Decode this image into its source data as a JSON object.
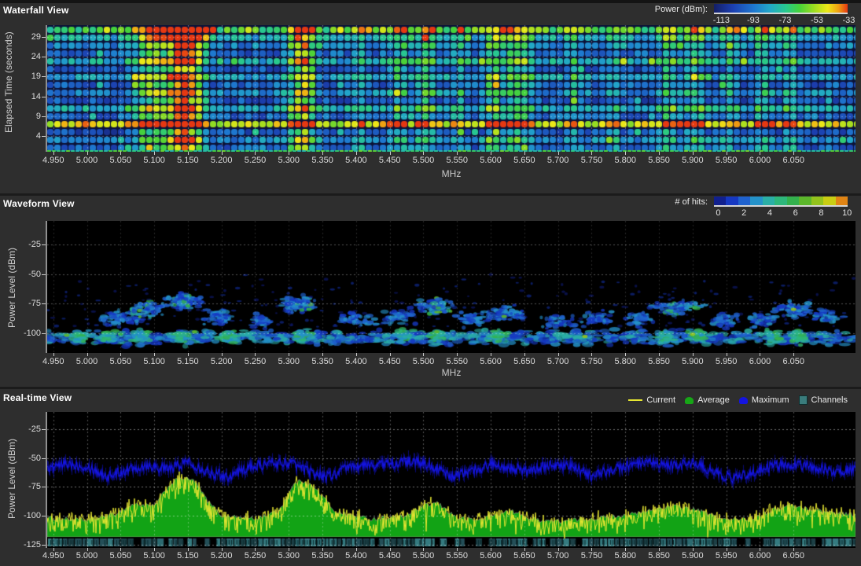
{
  "chart_data": [
    {
      "type": "heatmap",
      "title": "Waterfall View",
      "xlabel": "MHz",
      "ylabel": "Elapsed Time (seconds)",
      "xlim": [
        4.941,
        6.142
      ],
      "ylim": [
        0,
        32
      ],
      "x_ticks": [
        "4.950",
        "5.000",
        "5.050",
        "5.100",
        "5.150",
        "5.200",
        "5.250",
        "5.300",
        "5.350",
        "5.400",
        "5.450",
        "5.500",
        "5.550",
        "5.600",
        "5.650",
        "5.700",
        "5.750",
        "5.800",
        "5.850",
        "5.900",
        "5.950",
        "6.000",
        "6.050"
      ],
      "y_ticks": [
        4,
        9,
        14,
        19,
        24,
        29
      ],
      "grid": true,
      "colorbar": {
        "label": "Power (dBm):",
        "min": -113,
        "max": -33,
        "ticks": [
          -113,
          -93,
          -73,
          -53,
          -33
        ],
        "gradient_stops": [
          [
            0,
            "#141f66"
          ],
          [
            0.14,
            "#1c3fb0"
          ],
          [
            0.3,
            "#1e78d0"
          ],
          [
            0.42,
            "#22a8c8"
          ],
          [
            0.54,
            "#28c88e"
          ],
          [
            0.64,
            "#46d23a"
          ],
          [
            0.75,
            "#9ede20"
          ],
          [
            0.85,
            "#eee818"
          ],
          [
            0.93,
            "#f0a212"
          ],
          [
            1,
            "#e63812"
          ]
        ]
      },
      "rows": {
        "times_s": [
          1,
          3,
          5,
          7,
          9,
          11,
          13,
          15,
          17,
          19,
          21,
          23,
          25,
          27,
          29,
          31
        ],
        "base_levels_0to10": [
          2.5,
          3.5,
          2.0,
          8.5,
          2.5,
          4.5,
          2.0,
          3.5,
          2.5,
          4.0,
          2.0,
          4.5,
          2.5,
          3.5,
          4.5,
          6.5
        ]
      },
      "hot_columns": [
        [
          5.085,
          3.5,
          0.012
        ],
        [
          5.105,
          3.0,
          0.01
        ],
        [
          5.13,
          4.0,
          0.012
        ],
        [
          5.148,
          5.5,
          0.014
        ],
        [
          5.165,
          3.0,
          0.01
        ],
        [
          5.315,
          4.5,
          0.012
        ],
        [
          5.33,
          3.0,
          0.008
        ],
        [
          5.405,
          2.0,
          0.008
        ],
        [
          5.465,
          2.5,
          0.01
        ],
        [
          5.505,
          3.0,
          0.01
        ],
        [
          5.555,
          2.0,
          0.008
        ],
        [
          5.605,
          3.5,
          0.01
        ],
        [
          5.635,
          3.0,
          0.01
        ],
        [
          5.655,
          2.5,
          0.008
        ],
        [
          5.725,
          2.0,
          0.008
        ],
        [
          5.785,
          2.0,
          0.008
        ],
        [
          5.865,
          3.0,
          0.01
        ],
        [
          5.905,
          3.0,
          0.01
        ],
        [
          5.955,
          2.0,
          0.008
        ],
        [
          6.005,
          2.5,
          0.008
        ],
        [
          6.045,
          2.5,
          0.008
        ]
      ],
      "features": [
        "continuous high-power (yellow/orange) row at t=7 s across all frequencies",
        "strongest red hotspot near 5.15 MHz at t=29-31 s",
        "bright teal/green newest row at top (t=31 s)"
      ]
    },
    {
      "type": "heatmap",
      "title": "Waveform View",
      "xlabel": "MHz",
      "ylabel": "Power Level (dBm)",
      "xlim": [
        4.941,
        6.142
      ],
      "ylim": [
        -117,
        -5
      ],
      "x_ticks": [
        "4.950",
        "5.000",
        "5.050",
        "5.100",
        "5.150",
        "5.200",
        "5.250",
        "5.300",
        "5.350",
        "5.400",
        "5.450",
        "5.500",
        "5.550",
        "5.600",
        "5.650",
        "5.700",
        "5.750",
        "5.800",
        "5.850",
        "5.900",
        "5.950",
        "6.000",
        "6.050"
      ],
      "y_ticks": [
        -25,
        -50,
        -75,
        -100
      ],
      "grid": true,
      "colorbar": {
        "label": "# of hits:",
        "ticks": [
          0,
          2,
          4,
          6,
          8,
          10
        ],
        "palette": [
          "#11208e",
          "#1638c2",
          "#1f62cf",
          "#2492c9",
          "#2aafa6",
          "#2db77b",
          "#33b14d",
          "#5cb72b",
          "#93c31c",
          "#c9cd12",
          "#e08414"
        ]
      },
      "noise_floor_dbm": -104,
      "clusters": [
        [
          5.05,
          0.03,
          -88,
          0.5
        ],
        [
          5.09,
          0.025,
          -80,
          0.6
        ],
        [
          5.145,
          0.022,
          -73,
          0.9
        ],
        [
          5.2,
          0.025,
          -86,
          0.4
        ],
        [
          5.26,
          0.02,
          -90,
          0.3
        ],
        [
          5.315,
          0.022,
          -76,
          0.8
        ],
        [
          5.4,
          0.025,
          -88,
          0.4
        ],
        [
          5.46,
          0.02,
          -86,
          0.4
        ],
        [
          5.52,
          0.022,
          -78,
          0.6
        ],
        [
          5.57,
          0.02,
          -88,
          0.3
        ],
        [
          5.62,
          0.03,
          -84,
          0.5
        ],
        [
          5.7,
          0.025,
          -90,
          0.3
        ],
        [
          5.76,
          0.02,
          -88,
          0.3
        ],
        [
          5.82,
          0.02,
          -88,
          0.3
        ],
        [
          5.875,
          0.03,
          -78,
          0.6
        ],
        [
          5.95,
          0.02,
          -90,
          0.3
        ],
        [
          6.0,
          0.02,
          -88,
          0.3
        ],
        [
          6.05,
          0.03,
          -80,
          0.5
        ],
        [
          6.1,
          0.02,
          -86,
          0.3
        ]
      ],
      "hotspots": [
        [
          5.15,
          -77
        ],
        [
          5.05,
          -101
        ],
        [
          5.33,
          -80
        ],
        [
          5.52,
          -99
        ],
        [
          5.62,
          -86
        ],
        [
          5.9,
          -101
        ],
        [
          6.05,
          -80
        ],
        [
          5.16,
          -99
        ],
        [
          4.97,
          -102
        ],
        [
          5.74,
          -103
        ]
      ],
      "band_bright_mhz": [
        4.99,
        5.03,
        5.08,
        5.14,
        5.21,
        5.32,
        5.47,
        5.52,
        5.61,
        5.86,
        5.91,
        6.02,
        6.06
      ]
    },
    {
      "type": "line",
      "title": "Real-time View",
      "ylabel": "Power Level (dBm)",
      "xlim": [
        4.941,
        6.142
      ],
      "ylim": [
        -128,
        -10
      ],
      "x_ticks": [
        "4.950",
        "5.000",
        "5.050",
        "5.100",
        "5.150",
        "5.200",
        "5.250",
        "5.300",
        "5.350",
        "5.400",
        "5.450",
        "5.500",
        "5.550",
        "5.600",
        "5.650",
        "5.700",
        "5.750",
        "5.800",
        "5.850",
        "5.900",
        "5.950",
        "6.000",
        "6.050"
      ],
      "y_ticks": [
        -25,
        -50,
        -75,
        -100,
        -125
      ],
      "grid": true,
      "legend": [
        {
          "label": "Current",
          "color": "#e6e632",
          "style": "line"
        },
        {
          "label": "Average",
          "color": "#17a617",
          "style": "blob"
        },
        {
          "label": "Maximum",
          "color": "#1414e0",
          "style": "blob"
        },
        {
          "label": "Channels",
          "color": "#3a7c7c",
          "style": "square"
        }
      ],
      "series": [
        {
          "name": "Maximum",
          "color": "#1414e0",
          "points": [
            [
              4.94,
              -60
            ],
            [
              4.97,
              -55
            ],
            [
              5.0,
              -57
            ],
            [
              5.03,
              -66
            ],
            [
              5.06,
              -60
            ],
            [
              5.09,
              -56
            ],
            [
              5.12,
              -60
            ],
            [
              5.15,
              -53
            ],
            [
              5.18,
              -62
            ],
            [
              5.21,
              -66
            ],
            [
              5.24,
              -58
            ],
            [
              5.27,
              -55
            ],
            [
              5.3,
              -54
            ],
            [
              5.33,
              -62
            ],
            [
              5.36,
              -66
            ],
            [
              5.39,
              -58
            ],
            [
              5.42,
              -56
            ],
            [
              5.45,
              -55
            ],
            [
              5.48,
              -53
            ],
            [
              5.51,
              -56
            ],
            [
              5.54,
              -66
            ],
            [
              5.57,
              -62
            ],
            [
              5.6,
              -55
            ],
            [
              5.63,
              -58
            ],
            [
              5.66,
              -62
            ],
            [
              5.69,
              -55
            ],
            [
              5.72,
              -58
            ],
            [
              5.75,
              -66
            ],
            [
              5.78,
              -60
            ],
            [
              5.81,
              -56
            ],
            [
              5.84,
              -55
            ],
            [
              5.87,
              -57
            ],
            [
              5.9,
              -54
            ],
            [
              5.93,
              -62
            ],
            [
              5.96,
              -68
            ],
            [
              5.99,
              -62
            ],
            [
              6.02,
              -57
            ],
            [
              6.05,
              -55
            ],
            [
              6.08,
              -58
            ],
            [
              6.11,
              -62
            ],
            [
              6.14,
              -60
            ]
          ]
        },
        {
          "name": "Average",
          "color": "#12a315",
          "points": [
            [
              4.94,
              -102
            ],
            [
              5.0,
              -104
            ],
            [
              5.04,
              -99
            ],
            [
              5.07,
              -90
            ],
            [
              5.1,
              -92
            ],
            [
              5.125,
              -72
            ],
            [
              5.14,
              -67
            ],
            [
              5.16,
              -70
            ],
            [
              5.18,
              -88
            ],
            [
              5.2,
              -100
            ],
            [
              5.25,
              -103
            ],
            [
              5.285,
              -96
            ],
            [
              5.31,
              -71
            ],
            [
              5.325,
              -70
            ],
            [
              5.345,
              -80
            ],
            [
              5.37,
              -97
            ],
            [
              5.42,
              -103
            ],
            [
              5.47,
              -101
            ],
            [
              5.5,
              -92
            ],
            [
              5.52,
              -89
            ],
            [
              5.55,
              -102
            ],
            [
              5.58,
              -104
            ],
            [
              5.61,
              -99
            ],
            [
              5.63,
              -96
            ],
            [
              5.66,
              -103
            ],
            [
              5.7,
              -105
            ],
            [
              5.74,
              -103
            ],
            [
              5.78,
              -101
            ],
            [
              5.82,
              -98
            ],
            [
              5.855,
              -93
            ],
            [
              5.88,
              -92
            ],
            [
              5.91,
              -96
            ],
            [
              5.95,
              -104
            ],
            [
              5.99,
              -102
            ],
            [
              6.02,
              -95
            ],
            [
              6.045,
              -91
            ],
            [
              6.07,
              -94
            ],
            [
              6.1,
              -97
            ],
            [
              6.14,
              -99
            ]
          ]
        },
        {
          "name": "Current",
          "color": "#e6e632",
          "note": "jagged trace fluctuating -14/+7 dBm around the Average curve, peaks at 5.14 MHz (-62 dBm) and 5.32 MHz (-70 dBm)"
        }
      ],
      "channels_strip": {
        "present": true,
        "colors": [
          "#2c6a70",
          "#244f58",
          "#357b80",
          "#1d4046"
        ]
      }
    }
  ]
}
